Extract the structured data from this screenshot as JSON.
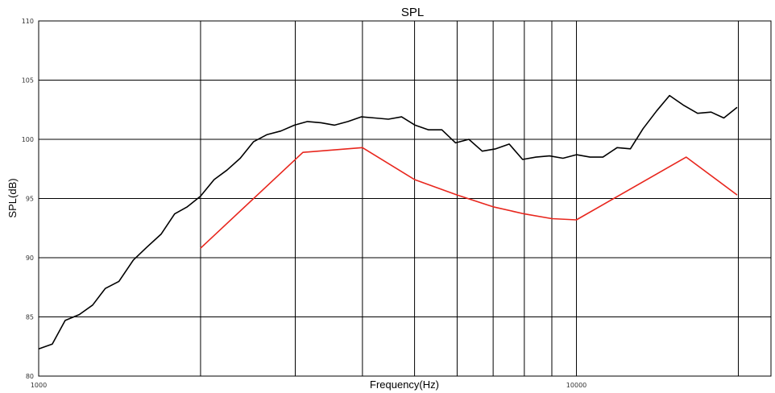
{
  "chart_data": {
    "type": "line",
    "title": "SPL",
    "xlabel": "Frequency(Hz)",
    "ylabel": "SPL(dB)",
    "x_scale": "log",
    "xlim": [
      1000,
      23000
    ],
    "ylim": [
      80,
      110
    ],
    "x_tick_labels": [
      "1000",
      "10000"
    ],
    "y_ticks": [
      80,
      85,
      90,
      95,
      100,
      105,
      110
    ],
    "grid": true,
    "series": [
      {
        "color": "#000000",
        "points": [
          [
            1000,
            82.3
          ],
          [
            1060,
            82.7
          ],
          [
            1120,
            84.7
          ],
          [
            1190,
            85.2
          ],
          [
            1260,
            86.0
          ],
          [
            1330,
            87.4
          ],
          [
            1410,
            88.0
          ],
          [
            1500,
            89.8
          ],
          [
            1590,
            90.9
          ],
          [
            1690,
            92.0
          ],
          [
            1790,
            93.7
          ],
          [
            1890,
            94.3
          ],
          [
            2000,
            95.2
          ],
          [
            2120,
            96.6
          ],
          [
            2240,
            97.4
          ],
          [
            2370,
            98.4
          ],
          [
            2510,
            99.8
          ],
          [
            2660,
            100.4
          ],
          [
            2820,
            100.7
          ],
          [
            2990,
            101.2
          ],
          [
            3160,
            101.5
          ],
          [
            3350,
            101.4
          ],
          [
            3550,
            101.2
          ],
          [
            3760,
            101.5
          ],
          [
            3980,
            101.9
          ],
          [
            4220,
            101.8
          ],
          [
            4470,
            101.7
          ],
          [
            4730,
            101.9
          ],
          [
            5010,
            101.2
          ],
          [
            5310,
            100.8
          ],
          [
            5620,
            100.8
          ],
          [
            5960,
            99.7
          ],
          [
            6310,
            100.0
          ],
          [
            6680,
            99.0
          ],
          [
            7080,
            99.2
          ],
          [
            7500,
            99.6
          ],
          [
            7940,
            98.3
          ],
          [
            8410,
            98.5
          ],
          [
            8910,
            98.6
          ],
          [
            9440,
            98.4
          ],
          [
            10000,
            98.7
          ],
          [
            10600,
            98.5
          ],
          [
            11200,
            98.5
          ],
          [
            11900,
            99.3
          ],
          [
            12600,
            99.2
          ],
          [
            13300,
            100.9
          ],
          [
            14100,
            102.4
          ],
          [
            14900,
            103.7
          ],
          [
            15800,
            102.9
          ],
          [
            16800,
            102.2
          ],
          [
            17800,
            102.3
          ],
          [
            18800,
            101.8
          ],
          [
            19900,
            102.7
          ]
        ]
      },
      {
        "color": "#e8261d",
        "points": [
          [
            2000,
            90.8
          ],
          [
            3100,
            98.9
          ],
          [
            4000,
            99.3
          ],
          [
            5000,
            96.6
          ],
          [
            6000,
            95.3
          ],
          [
            7000,
            94.3
          ],
          [
            8000,
            93.7
          ],
          [
            9000,
            93.3
          ],
          [
            10000,
            93.2
          ],
          [
            16000,
            98.5
          ],
          [
            19900,
            95.3
          ]
        ]
      }
    ]
  }
}
